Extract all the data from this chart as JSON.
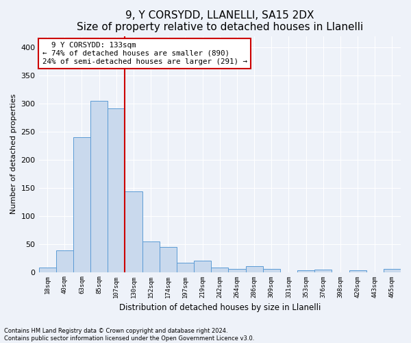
{
  "title1": "9, Y CORSYDD, LLANELLI, SA15 2DX",
  "title2": "Size of property relative to detached houses in Llanelli",
  "xlabel": "Distribution of detached houses by size in Llanelli",
  "ylabel": "Number of detached properties",
  "footnote1": "Contains HM Land Registry data © Crown copyright and database right 2024.",
  "footnote2": "Contains public sector information licensed under the Open Government Licence v3.0.",
  "annotation_line1": "  9 Y CORSYDD: 133sqm",
  "annotation_line2": "← 74% of detached houses are smaller (890)",
  "annotation_line3": "24% of semi-detached houses are larger (291) →",
  "bar_color": "#c9d9ed",
  "bar_edge_color": "#5b9bd5",
  "vline_color": "#cc0000",
  "categories": [
    "18sqm",
    "40sqm",
    "63sqm",
    "85sqm",
    "107sqm",
    "130sqm",
    "152sqm",
    "174sqm",
    "197sqm",
    "219sqm",
    "242sqm",
    "264sqm",
    "286sqm",
    "309sqm",
    "331sqm",
    "353sqm",
    "376sqm",
    "398sqm",
    "420sqm",
    "443sqm",
    "465sqm"
  ],
  "values": [
    8,
    38,
    240,
    305,
    292,
    143,
    55,
    45,
    17,
    20,
    8,
    5,
    10,
    5,
    0,
    3,
    4,
    0,
    3,
    0,
    5
  ],
  "ylim": [
    0,
    420
  ],
  "yticks": [
    0,
    50,
    100,
    150,
    200,
    250,
    300,
    350,
    400
  ],
  "background_color": "#eef2f9",
  "plot_bg_color": "#eef2f9",
  "grid_color": "#ffffff",
  "title_fontsize": 11,
  "subtitle_fontsize": 10,
  "vline_bar_index": 5
}
